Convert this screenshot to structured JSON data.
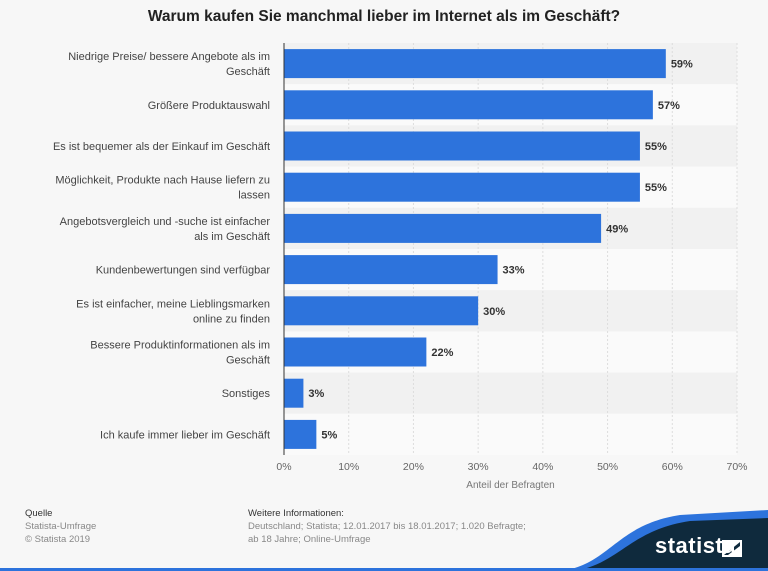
{
  "chart_data": {
    "type": "bar",
    "orientation": "horizontal",
    "title": "Warum kaufen Sie manchmal lieber im Internet als im Geschäft?",
    "xlabel": "Anteil der Befragten",
    "xlim": [
      0,
      70
    ],
    "xticks": [
      "0%",
      "10%",
      "20%",
      "30%",
      "40%",
      "50%",
      "60%",
      "70%"
    ],
    "grid": true,
    "bar_color": "#2d73dc",
    "categories": [
      [
        "Niedrige Preise/ bessere Angebote als im",
        "Geschäft"
      ],
      [
        "Größere Produktauswahl"
      ],
      [
        "Es ist bequemer als der Einkauf im Geschäft"
      ],
      [
        "Möglichkeit, Produkte nach Hause liefern zu",
        "lassen"
      ],
      [
        "Angebotsvergleich und -suche ist einfacher",
        "als im Geschäft"
      ],
      [
        "Kundenbewertungen sind verfügbar"
      ],
      [
        "Es ist einfacher, meine Lieblingsmarken",
        "online zu finden"
      ],
      [
        "Bessere Produktinformationen als im",
        "Geschäft"
      ],
      [
        "Sonstiges"
      ],
      [
        "Ich kaufe immer lieber im Geschäft"
      ]
    ],
    "values": [
      59,
      57,
      55,
      55,
      49,
      33,
      30,
      22,
      3,
      5
    ],
    "data_labels": [
      "59%",
      "57%",
      "55%",
      "55%",
      "49%",
      "33%",
      "30%",
      "22%",
      "3%",
      "5%"
    ]
  },
  "footer": {
    "source_heading": "Quelle",
    "source_lines": [
      "Statista-Umfrage",
      "© Statista 2019"
    ],
    "info_heading": "Weitere Informationen:",
    "info_lines": [
      "Deutschland; Statista; 12.01.2017 bis 18.01.2017; 1.020 Befragte;",
      "ab 18 Jahre; Online-Umfrage"
    ]
  },
  "logo": {
    "text": "statista",
    "color": "#0f2a3d"
  }
}
